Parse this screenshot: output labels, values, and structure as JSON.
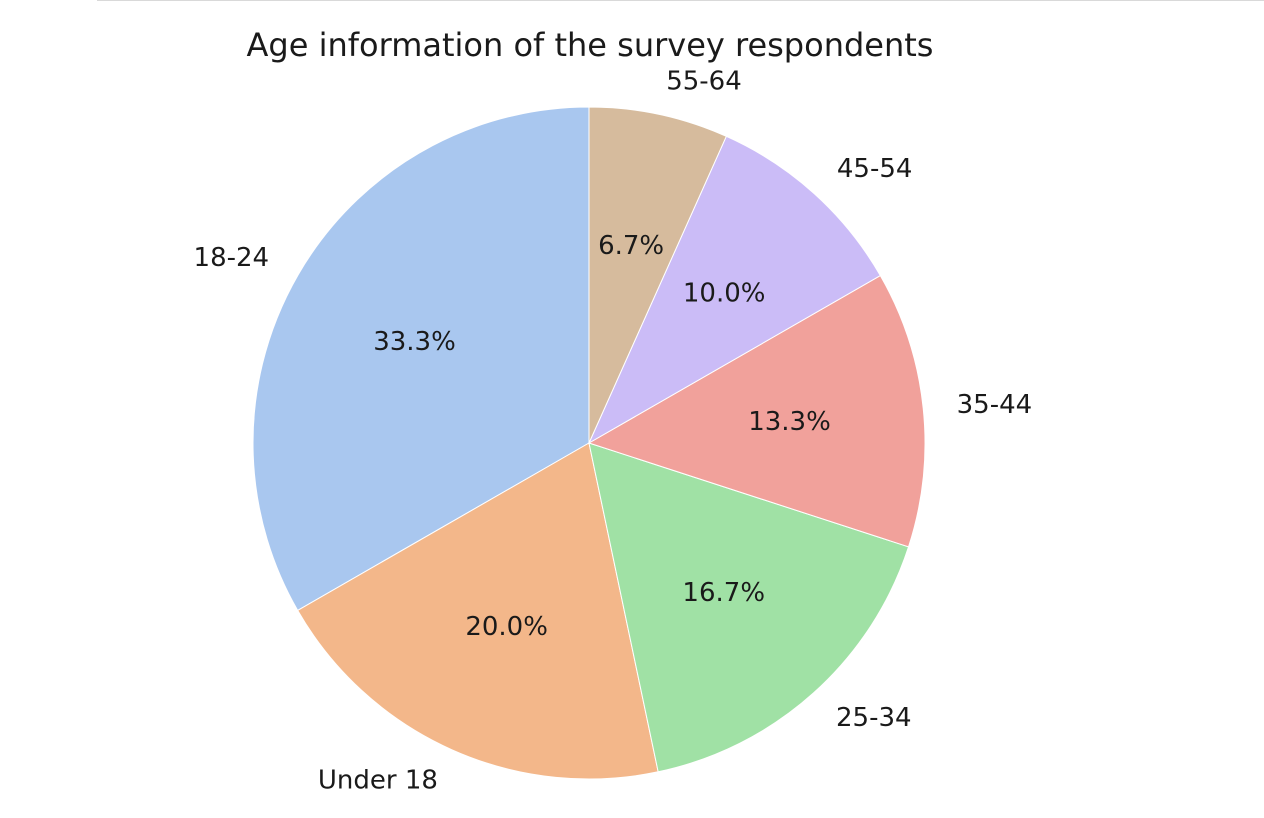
{
  "chart_data": {
    "type": "pie",
    "title": "Age information of the survey respondents",
    "start_angle_deg": 90,
    "direction": "counterclockwise",
    "slices": [
      {
        "label": "18-24",
        "value": 33.3,
        "pct_label": "33.3%",
        "color": "#a9c7ef"
      },
      {
        "label": "Under 18",
        "value": 20.0,
        "pct_label": "20.0%",
        "color": "#f3b78a"
      },
      {
        "label": "25-34",
        "value": 16.7,
        "pct_label": "16.7%",
        "color": "#a0e1a5"
      },
      {
        "label": "35-44",
        "value": 13.3,
        "pct_label": "13.3%",
        "color": "#f1a19b"
      },
      {
        "label": "45-54",
        "value": 10.0,
        "pct_label": "10.0%",
        "color": "#cbbcf7"
      },
      {
        "label": "55-64",
        "value": 6.7,
        "pct_label": "6.7%",
        "color": "#d6bb9d"
      }
    ]
  }
}
